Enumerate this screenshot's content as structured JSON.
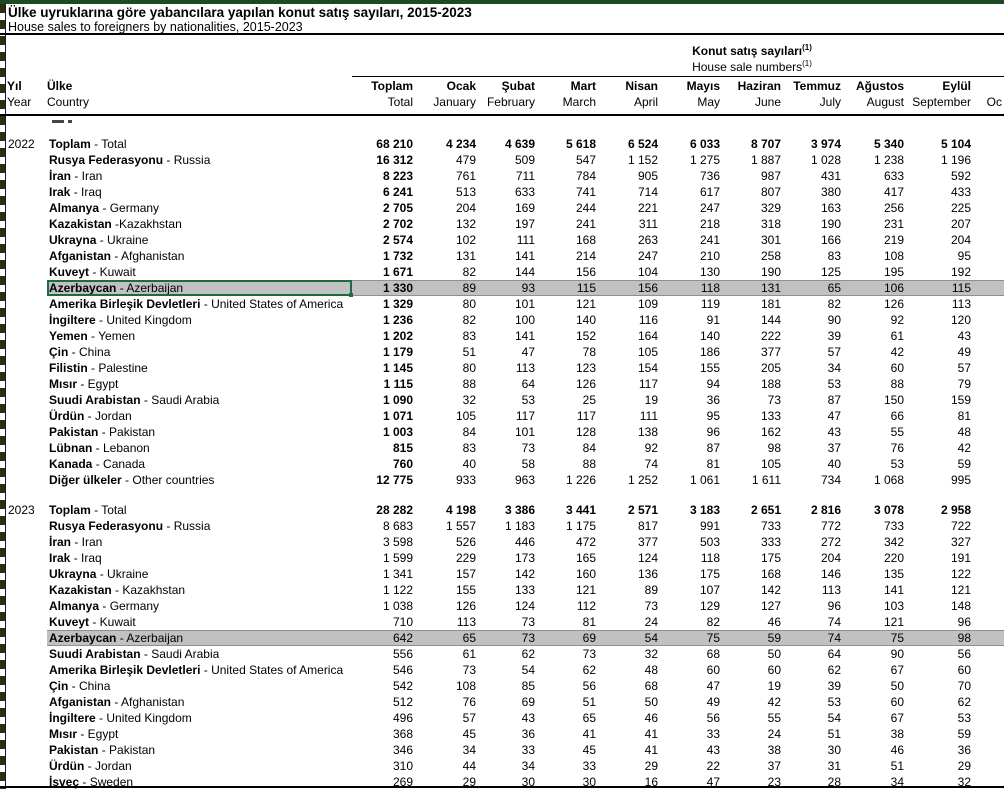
{
  "titles": {
    "tr": "Ülke uyruklarına göre yabancılara yapılan konut satış sayıları, 2015-2023",
    "en": "House sales to foreigners by nationalities, 2015-2023"
  },
  "colors": {
    "accent_green": "#1c4a23",
    "selection_border": "#1e6b40",
    "highlight_row": "#c1c1c1"
  },
  "table": {
    "group_header_tr": "Konut satış sayıları",
    "group_header_en": "House sale numbers",
    "footnote_marker": "(1)",
    "year_header": {
      "tr": "Yıl",
      "en": "Year"
    },
    "country_header": {
      "tr": "Ülke",
      "en": "Country"
    },
    "columns": [
      {
        "tr": "Toplam",
        "en": "Total"
      },
      {
        "tr": "Ocak",
        "en": "January"
      },
      {
        "tr": "Şubat",
        "en": "February"
      },
      {
        "tr": "Mart",
        "en": "March"
      },
      {
        "tr": "Nisan",
        "en": "April"
      },
      {
        "tr": "Mayıs",
        "en": "May"
      },
      {
        "tr": "Haziran",
        "en": "June"
      },
      {
        "tr": "Temmuz",
        "en": "July"
      },
      {
        "tr": "Ağustos",
        "en": "August"
      },
      {
        "tr": "Eylül",
        "en": "September"
      },
      {
        "tr": "",
        "en": "Oc"
      }
    ],
    "sections": [
      {
        "year": "2022",
        "bold_total_col": true,
        "rows": [
          {
            "tr": "Toplam",
            "en": "Total",
            "bold_values": true,
            "values": [
              "68 210",
              "4 234",
              "4 639",
              "5 618",
              "6 524",
              "6 033",
              "8 707",
              "3 974",
              "5 340",
              "5 104"
            ]
          },
          {
            "tr": "Rusya Federasyonu",
            "en": "Russia",
            "values": [
              "16 312",
              "479",
              "509",
              "547",
              "1 152",
              "1 275",
              "1 887",
              "1 028",
              "1 238",
              "1 196"
            ]
          },
          {
            "tr": "İran",
            "en": "Iran",
            "values": [
              "8 223",
              "761",
              "711",
              "784",
              "905",
              "736",
              "987",
              "431",
              "633",
              "592"
            ]
          },
          {
            "tr": "Irak",
            "en": "Iraq",
            "values": [
              "6 241",
              "513",
              "633",
              "741",
              "714",
              "617",
              "807",
              "380",
              "417",
              "433"
            ]
          },
          {
            "tr": "Almanya",
            "en": "Germany",
            "values": [
              "2 705",
              "204",
              "169",
              "244",
              "221",
              "247",
              "329",
              "163",
              "256",
              "225"
            ]
          },
          {
            "tr": "Kazakistan",
            "en": "Kazakhstan",
            "sep": " -",
            "values": [
              "2 702",
              "132",
              "197",
              "241",
              "311",
              "218",
              "318",
              "190",
              "231",
              "207"
            ]
          },
          {
            "tr": "Ukrayna",
            "en": "Ukraine",
            "values": [
              "2 574",
              "102",
              "111",
              "168",
              "263",
              "241",
              "301",
              "166",
              "219",
              "204"
            ]
          },
          {
            "tr": "Afganistan",
            "en": "Afghanistan",
            "values": [
              "1 732",
              "131",
              "141",
              "214",
              "247",
              "210",
              "258",
              "83",
              "108",
              "95"
            ]
          },
          {
            "tr": "Kuveyt",
            "en": "Kuwait",
            "values": [
              "1 671",
              "82",
              "144",
              "156",
              "104",
              "130",
              "190",
              "125",
              "195",
              "192"
            ]
          },
          {
            "tr": "Azerbaycan",
            "en": "Azerbaijan",
            "highlight": true,
            "selected": true,
            "values": [
              "1 330",
              "89",
              "93",
              "115",
              "156",
              "118",
              "131",
              "65",
              "106",
              "115"
            ]
          },
          {
            "tr": "Amerika Birleşik Devletleri",
            "en": "United States of America",
            "values": [
              "1 329",
              "80",
              "101",
              "121",
              "109",
              "119",
              "181",
              "82",
              "126",
              "113"
            ]
          },
          {
            "tr": "İngiltere",
            "en": "United Kingdom",
            "values": [
              "1 236",
              "82",
              "100",
              "140",
              "116",
              "91",
              "144",
              "90",
              "92",
              "120"
            ]
          },
          {
            "tr": "Yemen",
            "en": "Yemen",
            "values": [
              "1 202",
              "83",
              "141",
              "152",
              "164",
              "140",
              "222",
              "39",
              "61",
              "43"
            ]
          },
          {
            "tr": "Çin",
            "en": "China",
            "values": [
              "1 179",
              "51",
              "47",
              "78",
              "105",
              "186",
              "377",
              "57",
              "42",
              "49"
            ]
          },
          {
            "tr": "Filistin",
            "en": "Palestine",
            "values": [
              "1 145",
              "80",
              "113",
              "123",
              "154",
              "155",
              "205",
              "34",
              "60",
              "57"
            ]
          },
          {
            "tr": "Mısır",
            "en": "Egypt",
            "values": [
              "1 115",
              "88",
              "64",
              "126",
              "117",
              "94",
              "188",
              "53",
              "88",
              "79"
            ]
          },
          {
            "tr": "Suudi Arabistan",
            "en": "Saudi Arabia",
            "values": [
              "1 090",
              "32",
              "53",
              "25",
              "19",
              "36",
              "73",
              "87",
              "150",
              "159"
            ]
          },
          {
            "tr": "Ürdün",
            "en": "Jordan",
            "values": [
              "1 071",
              "105",
              "117",
              "117",
              "111",
              "95",
              "133",
              "47",
              "66",
              "81"
            ]
          },
          {
            "tr": "Pakistan",
            "en": "Pakistan",
            "values": [
              "1 003",
              "84",
              "101",
              "128",
              "138",
              "96",
              "162",
              "43",
              "55",
              "48"
            ]
          },
          {
            "tr": "Lübnan",
            "en": "Lebanon",
            "values": [
              "815",
              "83",
              "73",
              "84",
              "92",
              "87",
              "98",
              "37",
              "76",
              "42"
            ]
          },
          {
            "tr": "Kanada",
            "en": "Canada",
            "values": [
              "760",
              "40",
              "58",
              "88",
              "74",
              "81",
              "105",
              "40",
              "53",
              "59"
            ]
          },
          {
            "tr": "Diğer ülkeler",
            "en": "Other countries",
            "values": [
              "12 775",
              "933",
              "963",
              "1 226",
              "1 252",
              "1 061",
              "1 611",
              "734",
              "1 068",
              "995"
            ]
          }
        ]
      },
      {
        "year": "2023",
        "bold_total_col": false,
        "rows": [
          {
            "tr": "Toplam",
            "en": "Total",
            "bold_values": true,
            "values": [
              "28 282",
              "4 198",
              "3 386",
              "3 441",
              "2 571",
              "3 183",
              "2 651",
              "2 816",
              "3 078",
              "2 958"
            ]
          },
          {
            "tr": "Rusya Federasyonu",
            "en": "Russia",
            "values": [
              "8 683",
              "1 557",
              "1 183",
              "1 175",
              "817",
              "991",
              "733",
              "772",
              "733",
              "722"
            ]
          },
          {
            "tr": "İran",
            "en": "Iran",
            "values": [
              "3 598",
              "526",
              "446",
              "472",
              "377",
              "503",
              "333",
              "272",
              "342",
              "327"
            ]
          },
          {
            "tr": "Irak",
            "en": "Iraq",
            "values": [
              "1 599",
              "229",
              "173",
              "165",
              "124",
              "118",
              "175",
              "204",
              "220",
              "191"
            ]
          },
          {
            "tr": "Ukrayna",
            "en": "Ukraine",
            "values": [
              "1 341",
              "157",
              "142",
              "160",
              "136",
              "175",
              "168",
              "146",
              "135",
              "122"
            ]
          },
          {
            "tr": "Kazakistan",
            "en": "Kazakhstan",
            "values": [
              "1 122",
              "155",
              "133",
              "121",
              "89",
              "107",
              "142",
              "113",
              "141",
              "121"
            ]
          },
          {
            "tr": "Almanya",
            "en": "Germany",
            "values": [
              "1 038",
              "126",
              "124",
              "112",
              "73",
              "129",
              "127",
              "96",
              "103",
              "148"
            ]
          },
          {
            "tr": "Kuveyt",
            "en": "Kuwait",
            "values": [
              "710",
              "113",
              "73",
              "81",
              "24",
              "82",
              "46",
              "74",
              "121",
              "96"
            ]
          },
          {
            "tr": "Azerbaycan",
            "en": "Azerbaijan",
            "highlight": true,
            "values": [
              "642",
              "65",
              "73",
              "69",
              "54",
              "75",
              "59",
              "74",
              "75",
              "98"
            ]
          },
          {
            "tr": "Suudi Arabistan",
            "en": "Saudi Arabia",
            "values": [
              "556",
              "61",
              "62",
              "73",
              "32",
              "68",
              "50",
              "64",
              "90",
              "56"
            ]
          },
          {
            "tr": "Amerika Birleşik Devletleri",
            "en": "United States of America",
            "values": [
              "546",
              "73",
              "54",
              "62",
              "48",
              "60",
              "60",
              "62",
              "67",
              "60"
            ]
          },
          {
            "tr": "Çin",
            "en": "China",
            "values": [
              "542",
              "108",
              "85",
              "56",
              "68",
              "47",
              "19",
              "39",
              "50",
              "70"
            ]
          },
          {
            "tr": "Afganistan",
            "en": "Afghanistan",
            "values": [
              "512",
              "76",
              "69",
              "51",
              "50",
              "49",
              "42",
              "53",
              "60",
              "62"
            ]
          },
          {
            "tr": "İngiltere",
            "en": "United Kingdom",
            "values": [
              "496",
              "57",
              "43",
              "65",
              "46",
              "56",
              "55",
              "54",
              "67",
              "53"
            ]
          },
          {
            "tr": "Mısır",
            "en": "Egypt",
            "values": [
              "368",
              "45",
              "36",
              "41",
              "41",
              "33",
              "24",
              "51",
              "38",
              "59"
            ]
          },
          {
            "tr": "Pakistan",
            "en": "Pakistan",
            "values": [
              "346",
              "34",
              "33",
              "45",
              "41",
              "43",
              "38",
              "30",
              "46",
              "36"
            ]
          },
          {
            "tr": "Ürdün",
            "en": "Jordan",
            "values": [
              "310",
              "44",
              "34",
              "33",
              "29",
              "22",
              "37",
              "31",
              "51",
              "29"
            ]
          },
          {
            "tr": "İsveç",
            "en": "Sweden",
            "values": [
              "269",
              "29",
              "30",
              "30",
              "16",
              "47",
              "23",
              "28",
              "34",
              "32"
            ]
          }
        ]
      }
    ]
  }
}
